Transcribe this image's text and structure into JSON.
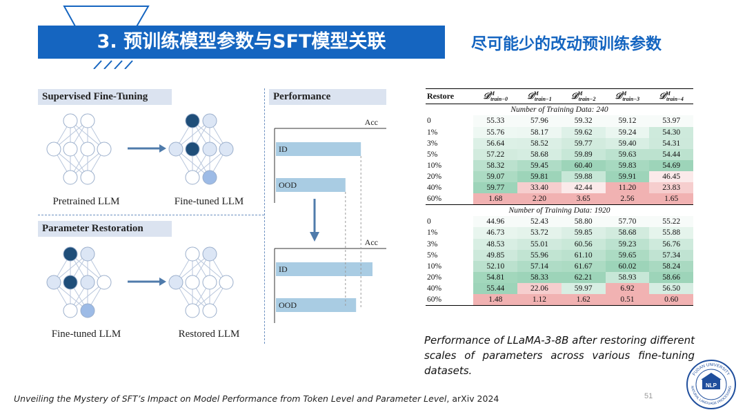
{
  "header": {
    "title": "3. 预训练模型参数与SFT模型关联",
    "subtitle": "尽可能少的改动预训练参数"
  },
  "diagram": {
    "sft_label": "Supervised Fine-Tuning",
    "pretrained_caption": "Pretrained LLM",
    "finetuned_caption": "Fine-tuned LLM",
    "restoration_label": "Parameter Restoration",
    "finetuned_caption_2": "Fine-tuned LLM",
    "restored_caption": "Restored LLM"
  },
  "performance": {
    "label": "Performance",
    "top": {
      "axis_label": "Acc",
      "bars": [
        {
          "label": "ID",
          "value": 0.88
        },
        {
          "label": "OOD",
          "value": 0.72
        }
      ]
    },
    "bottom": {
      "axis_label": "Acc",
      "bars": [
        {
          "label": "ID",
          "value": 1.0
        },
        {
          "label": "OOD",
          "value": 0.83
        }
      ]
    }
  },
  "table": {
    "headers": [
      "Restore",
      "D^M_train-0",
      "D^M_train-1",
      "D^M_train-2",
      "D^M_train-3",
      "D^M_train-4"
    ],
    "header_main": "𝒟",
    "header_sup": "M",
    "header_subs": [
      "train−0",
      "train−1",
      "train−2",
      "train−3",
      "train−4"
    ],
    "blocks": [
      {
        "title": "Number of Training Data: 240",
        "rows": [
          {
            "restore": "0",
            "values": [
              "55.33",
              "57.96",
              "59.32",
              "59.12",
              "53.97"
            ]
          },
          {
            "restore": "1%",
            "values": [
              "55.76",
              "58.17",
              "59.62",
              "59.24",
              "54.30"
            ]
          },
          {
            "restore": "3%",
            "values": [
              "56.64",
              "58.52",
              "59.77",
              "59.40",
              "54.31"
            ]
          },
          {
            "restore": "5%",
            "values": [
              "57.22",
              "58.68",
              "59.89",
              "59.63",
              "54.44"
            ]
          },
          {
            "restore": "10%",
            "values": [
              "58.32",
              "59.45",
              "60.40",
              "59.83",
              "54.69"
            ]
          },
          {
            "restore": "20%",
            "values": [
              "59.07",
              "59.81",
              "59.88",
              "59.91",
              "46.45"
            ]
          },
          {
            "restore": "40%",
            "values": [
              "59.77",
              "33.40",
              "42.44",
              "11.20",
              "23.83"
            ]
          },
          {
            "restore": "60%",
            "values": [
              "1.68",
              "2.20",
              "3.65",
              "2.56",
              "1.65"
            ]
          }
        ]
      },
      {
        "title": "Number of Training Data: 1920",
        "rows": [
          {
            "restore": "0",
            "values": [
              "44.96",
              "52.43",
              "58.80",
              "57.70",
              "55.22"
            ]
          },
          {
            "restore": "1%",
            "values": [
              "46.73",
              "53.72",
              "59.85",
              "58.68",
              "55.88"
            ]
          },
          {
            "restore": "3%",
            "values": [
              "48.53",
              "55.01",
              "60.56",
              "59.23",
              "56.76"
            ]
          },
          {
            "restore": "5%",
            "values": [
              "49.85",
              "55.96",
              "61.10",
              "59.65",
              "57.34"
            ]
          },
          {
            "restore": "10%",
            "values": [
              "52.10",
              "57.14",
              "61.67",
              "60.02",
              "58.24"
            ]
          },
          {
            "restore": "20%",
            "values": [
              "54.81",
              "58.33",
              "62.21",
              "58.93",
              "58.66"
            ]
          },
          {
            "restore": "40%",
            "values": [
              "55.44",
              "22.06",
              "59.97",
              "6.92",
              "56.50"
            ]
          },
          {
            "restore": "60%",
            "values": [
              "1.48",
              "1.12",
              "1.62",
              "0.51",
              "0.60"
            ]
          }
        ]
      }
    ]
  },
  "caption": "Performance of LLaMA-3-8B after restoring different scales of parameters across various fine-tuning datasets.",
  "footer": {
    "citation_italic": "Unveiling the Mystery of SFT’s Impact on Model Performance from Token Level and Parameter Level",
    "citation_rest": ", arXiv 2024"
  },
  "page_number": "51",
  "logo": {
    "top_text": "FUDAN UNIVERSITY",
    "center_text": "NLP",
    "bottom_text": "NATURAL LANGUAGE PROCESSING"
  },
  "colors": {
    "brand_blue": "#1565c0",
    "node_dark": "#1f4e79",
    "node_light": "#dce6f5",
    "node_mid": "#9dbbe6",
    "bar_fill": "#a9cce3",
    "cell_green": "#5cb88a",
    "cell_red": "#e57373"
  }
}
